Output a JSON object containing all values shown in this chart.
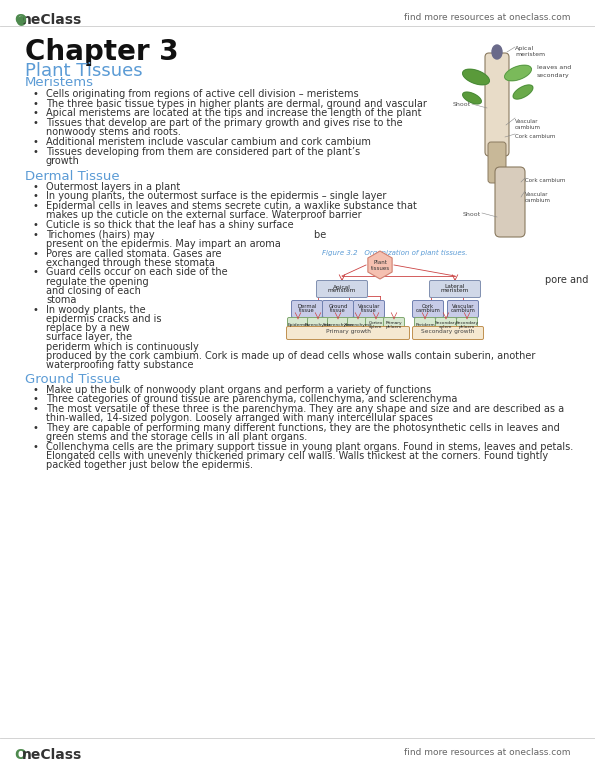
{
  "bg_color": "#ffffff",
  "header_right_text": "find more resources at oneclass.com",
  "footer_right_text": "find more resources at oneclass.com",
  "chapter_title": "Chapter 3",
  "section1_title": "Plant Tissues",
  "blue_color": "#5b9bd5",
  "subsection1_title": "Meristems",
  "meristems_bullets": [
    "Cells originating from regions of active cell division – meristems",
    "The three basic tissue types in higher plants are dermal, ground and vascular",
    "Apical meristems are located at the tips and increase the length of the plant",
    "Tissues that develop are part of the primary growth and gives rise to the\nnonwoody stems and roots.",
    "Additional meristem include vascular cambium and cork cambium",
    "Tissues developing from them are considered part of the plant’s\ngrowth"
  ],
  "subsection2_title": "Dermal Tissue",
  "dermal_bullets": [
    "Outermost layers in a plant",
    "In young plants, the outermost surface is the epidermis – single layer",
    "Epidermal cells in leaves and stems secrete cutin, a waxlike substance that\nmakes up the cuticle on the external surface. Waterproof barrier",
    "Cuticle is so thick that the leaf has a shiny surface",
    "Trichomes (hairs) may                                                            be\npresent on the epidermis. May impart an aroma",
    "Pores are called stomata. Gases are\nexchanged through these stomata",
    "Guard cells occur on each side of the\nregulate the opening\nand closing of each\nstoma",
    "In woody plants, the\nepidemis cracks and is\nreplace by a new\nsurface layer, the\nperiderm which is continuously\nproduced by the cork cambium. Cork is made up of dead cells whose walls contain suberin, another\nwaterproofing fatty substance"
  ],
  "subsection3_title": "Ground Tissue",
  "ground_bullets": [
    "Make up the bulk of nonwoody plant organs and perform a variety of functions",
    "Three categories of ground tissue are parenchyma, collenchyma, and sclerenchyma",
    "The most versatile of these three is the parenchyma. They are any shape and size and are described as a\nthin-walled, 14-sized polygon. Loosely arranged with many intercellular spaces",
    "They are capable of performing many different functions, they are the photosynthetic cells in leaves and\ngreen stems and the storage cells in all plant organs.",
    "Collenchyma cells are the primary support tissue in young plant organs. Found in stems, leaves and petals.\nElongated cells with unevenly thickened primary cell walls. Walls thickest at the corners. Found tightly\npacked together just below the epidermis."
  ],
  "logo_green": "#4e8a4e",
  "text_color": "#333333",
  "font_size_body": 7.0,
  "font_size_chapter": 20,
  "font_size_section": 13,
  "font_size_subsection": 9.5
}
